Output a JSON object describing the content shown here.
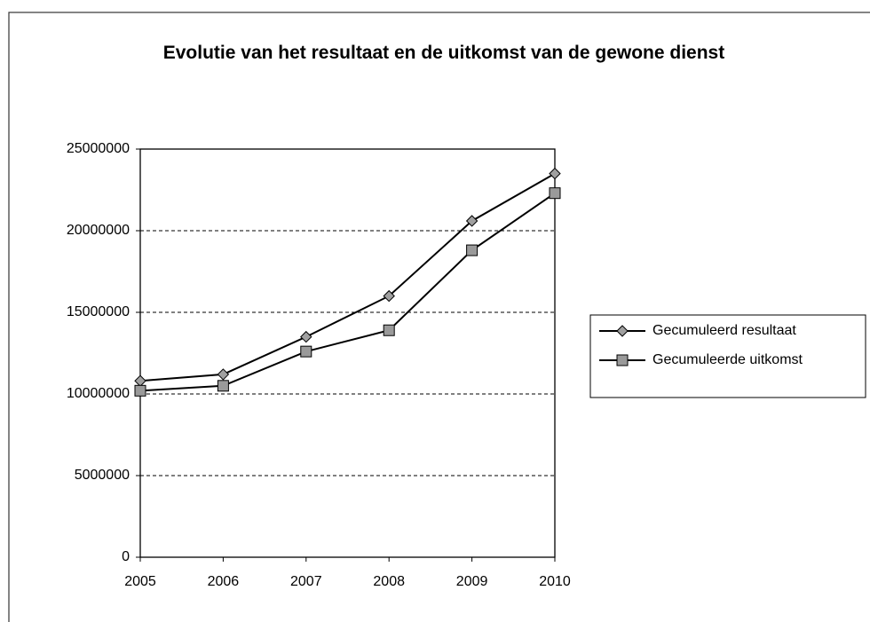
{
  "chart_data": {
    "type": "line",
    "title": "Evolutie van het resultaat en de uitkomst van de gewone dienst",
    "categories": [
      "2005",
      "2006",
      "2007",
      "2008",
      "2009",
      "2010"
    ],
    "series": [
      {
        "name": "Gecumuleerd resultaat",
        "color": "#000000",
        "marker": "diamond",
        "marker_color": "#a0a0a0",
        "values": [
          10800000,
          11200000,
          13500000,
          16000000,
          20600000,
          23500000
        ]
      },
      {
        "name": "Gecumuleerde uitkomst",
        "color": "#000000",
        "marker": "square",
        "marker_color": "#9a9a9a",
        "values": [
          10200000,
          10500000,
          12600000,
          13900000,
          18800000,
          22300000
        ]
      }
    ],
    "ylim": [
      0,
      25000000
    ],
    "yticks": [
      0,
      5000000,
      10000000,
      15000000,
      20000000,
      25000000
    ],
    "grid": true,
    "legend": "right"
  }
}
